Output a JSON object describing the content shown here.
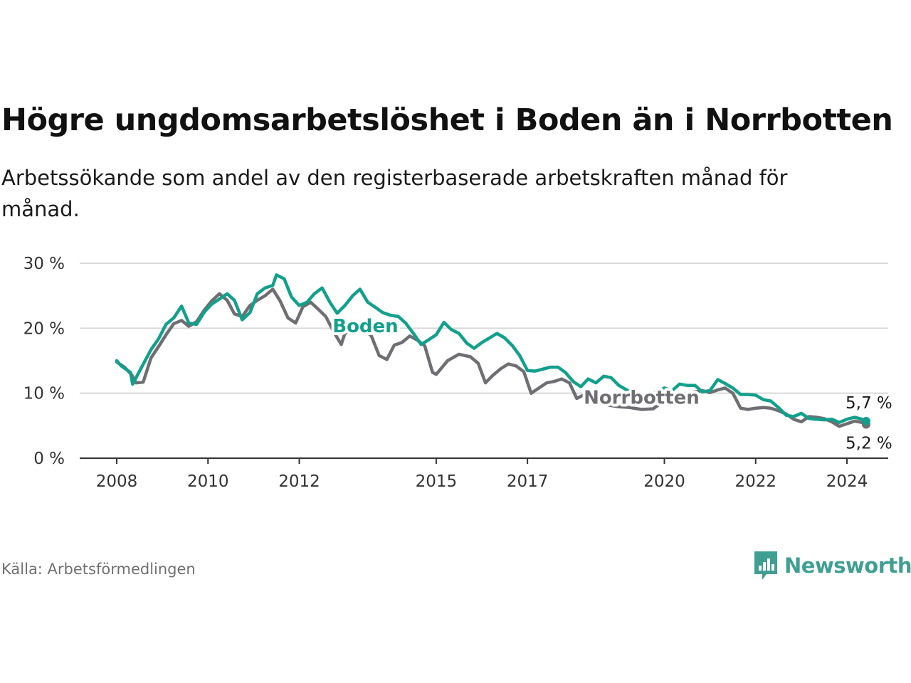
{
  "title": "Högre ungdomsarbetslöshet i Boden än i Norrbotten",
  "subtitle": "Arbetssökande som andel av den registerbaserade arbetskraften månad för månad.",
  "source": "Källa: Arbetsförmedlingen",
  "brand": "Newsworthy",
  "colors": {
    "boden": "#12a08c",
    "norrbotten": "#6f6e72",
    "brand": "#3f9f93",
    "grid": "#d9d9d9",
    "axis": "#333333"
  },
  "chart_data": {
    "type": "line",
    "title": "Högre ungdomsarbetslöshet i Boden än i Norrbotten",
    "xlabel": "",
    "ylabel": "",
    "x_range": [
      2008,
      2025
    ],
    "ylim": [
      0,
      30
    ],
    "x_ticks": [
      2008,
      2010,
      2012,
      2015,
      2017,
      2020,
      2022,
      2024
    ],
    "x_tick_labels": [
      "2008",
      "2010",
      "2012",
      "2015",
      "2017",
      "2020",
      "2022",
      "2024"
    ],
    "y_ticks": [
      0,
      10,
      20,
      30
    ],
    "y_tick_labels": [
      "0 %",
      "10 %",
      "20 %",
      "30 %"
    ],
    "grid": true,
    "series": [
      {
        "name": "Norrbotten",
        "label": "Norrbotten",
        "color": "#6f6e72",
        "end_label": "5,2 %",
        "points": [
          [
            2008.0,
            14.8
          ],
          [
            2008.17,
            14.0
          ],
          [
            2008.33,
            12.8
          ],
          [
            2008.42,
            11.6
          ],
          [
            2008.58,
            11.7
          ],
          [
            2008.75,
            15.4
          ],
          [
            2008.92,
            17.2
          ],
          [
            2009.08,
            19.0
          ],
          [
            2009.25,
            20.7
          ],
          [
            2009.42,
            21.2
          ],
          [
            2009.58,
            20.3
          ],
          [
            2009.75,
            21.0
          ],
          [
            2009.92,
            22.8
          ],
          [
            2010.08,
            24.2
          ],
          [
            2010.25,
            25.3
          ],
          [
            2010.42,
            24.3
          ],
          [
            2010.58,
            22.2
          ],
          [
            2010.75,
            21.8
          ],
          [
            2010.92,
            23.5
          ],
          [
            2011.08,
            24.3
          ],
          [
            2011.25,
            25.0
          ],
          [
            2011.42,
            26.0
          ],
          [
            2011.58,
            24.2
          ],
          [
            2011.75,
            21.6
          ],
          [
            2011.92,
            20.8
          ],
          [
            2012.08,
            23.3
          ],
          [
            2012.25,
            24.0
          ],
          [
            2012.42,
            22.9
          ],
          [
            2012.58,
            21.8
          ],
          [
            2012.75,
            19.5
          ],
          [
            2012.92,
            17.5
          ],
          [
            2013.0,
            19.2
          ],
          [
            2013.25,
            20.3
          ],
          [
            2013.42,
            19.9
          ],
          [
            2013.58,
            18.8
          ],
          [
            2013.75,
            15.8
          ],
          [
            2013.92,
            15.2
          ],
          [
            2014.08,
            17.4
          ],
          [
            2014.25,
            17.8
          ],
          [
            2014.42,
            18.8
          ],
          [
            2014.58,
            18.2
          ],
          [
            2014.75,
            17.3
          ],
          [
            2014.92,
            13.2
          ],
          [
            2015.0,
            12.9
          ],
          [
            2015.25,
            15.0
          ],
          [
            2015.5,
            16.0
          ],
          [
            2015.75,
            15.6
          ],
          [
            2015.92,
            14.6
          ],
          [
            2016.08,
            11.6
          ],
          [
            2016.25,
            12.8
          ],
          [
            2016.42,
            13.8
          ],
          [
            2016.58,
            14.5
          ],
          [
            2016.75,
            14.2
          ],
          [
            2016.92,
            13.3
          ],
          [
            2017.08,
            10.0
          ],
          [
            2017.25,
            10.8
          ],
          [
            2017.42,
            11.6
          ],
          [
            2017.58,
            11.8
          ],
          [
            2017.75,
            12.2
          ],
          [
            2017.92,
            11.6
          ],
          [
            2018.08,
            9.2
          ],
          [
            2018.25,
            9.8
          ],
          [
            2018.5,
            8.8
          ],
          [
            2018.75,
            8.2
          ],
          [
            2019.0,
            7.9
          ],
          [
            2019.25,
            7.8
          ],
          [
            2019.5,
            7.5
          ],
          [
            2019.75,
            7.6
          ],
          [
            2020.0,
            8.8
          ],
          [
            2020.17,
            9.5
          ],
          [
            2020.33,
            10.1
          ],
          [
            2020.5,
            9.9
          ],
          [
            2020.67,
            10.2
          ],
          [
            2020.83,
            10.4
          ],
          [
            2021.0,
            10.1
          ],
          [
            2021.17,
            10.5
          ],
          [
            2021.33,
            10.8
          ],
          [
            2021.5,
            10.0
          ],
          [
            2021.67,
            7.7
          ],
          [
            2021.83,
            7.5
          ],
          [
            2022.0,
            7.7
          ],
          [
            2022.17,
            7.8
          ],
          [
            2022.33,
            7.7
          ],
          [
            2022.5,
            7.3
          ],
          [
            2022.67,
            6.8
          ],
          [
            2022.83,
            6.0
          ],
          [
            2023.0,
            5.6
          ],
          [
            2023.17,
            6.4
          ],
          [
            2023.33,
            6.3
          ],
          [
            2023.5,
            6.1
          ],
          [
            2023.67,
            5.6
          ],
          [
            2023.83,
            4.9
          ],
          [
            2024.0,
            5.3
          ],
          [
            2024.17,
            5.7
          ],
          [
            2024.33,
            5.5
          ],
          [
            2024.42,
            5.2
          ]
        ]
      },
      {
        "name": "Boden",
        "label": "Boden",
        "color": "#12a08c",
        "end_label": "5,7 %",
        "points": [
          [
            2008.0,
            15.0
          ],
          [
            2008.1,
            14.2
          ],
          [
            2008.2,
            13.7
          ],
          [
            2008.3,
            13.2
          ],
          [
            2008.35,
            11.4
          ],
          [
            2008.5,
            13.4
          ],
          [
            2008.75,
            16.7
          ],
          [
            2008.92,
            18.4
          ],
          [
            2009.08,
            20.6
          ],
          [
            2009.25,
            21.6
          ],
          [
            2009.42,
            23.4
          ],
          [
            2009.58,
            20.8
          ],
          [
            2009.75,
            20.6
          ],
          [
            2009.92,
            22.5
          ],
          [
            2010.08,
            23.7
          ],
          [
            2010.25,
            24.5
          ],
          [
            2010.42,
            25.3
          ],
          [
            2010.58,
            24.3
          ],
          [
            2010.75,
            21.3
          ],
          [
            2010.92,
            22.4
          ],
          [
            2011.08,
            25.3
          ],
          [
            2011.25,
            26.2
          ],
          [
            2011.42,
            26.6
          ],
          [
            2011.5,
            28.2
          ],
          [
            2011.67,
            27.6
          ],
          [
            2011.83,
            24.8
          ],
          [
            2012.0,
            23.5
          ],
          [
            2012.17,
            24.0
          ],
          [
            2012.33,
            25.3
          ],
          [
            2012.5,
            26.2
          ],
          [
            2012.67,
            24.0
          ],
          [
            2012.83,
            22.3
          ],
          [
            2013.0,
            23.5
          ],
          [
            2013.17,
            25.0
          ],
          [
            2013.33,
            26.0
          ],
          [
            2013.5,
            24.0
          ],
          [
            2013.67,
            23.2
          ],
          [
            2013.83,
            22.4
          ],
          [
            2014.0,
            22.0
          ],
          [
            2014.17,
            21.8
          ],
          [
            2014.33,
            20.8
          ],
          [
            2014.5,
            19.2
          ],
          [
            2014.67,
            17.5
          ],
          [
            2014.83,
            18.2
          ],
          [
            2015.0,
            19.0
          ],
          [
            2015.17,
            20.9
          ],
          [
            2015.33,
            19.8
          ],
          [
            2015.5,
            19.2
          ],
          [
            2015.67,
            17.7
          ],
          [
            2015.83,
            16.9
          ],
          [
            2016.0,
            17.8
          ],
          [
            2016.17,
            18.5
          ],
          [
            2016.33,
            19.2
          ],
          [
            2016.5,
            18.5
          ],
          [
            2016.67,
            17.3
          ],
          [
            2016.83,
            15.8
          ],
          [
            2017.0,
            13.5
          ],
          [
            2017.17,
            13.4
          ],
          [
            2017.33,
            13.7
          ],
          [
            2017.5,
            14.0
          ],
          [
            2017.67,
            14.0
          ],
          [
            2017.83,
            13.2
          ],
          [
            2018.0,
            11.8
          ],
          [
            2018.17,
            11.0
          ],
          [
            2018.33,
            12.2
          ],
          [
            2018.5,
            11.6
          ],
          [
            2018.67,
            12.6
          ],
          [
            2018.83,
            12.4
          ],
          [
            2019.0,
            11.2
          ],
          [
            2019.25,
            10.2
          ],
          [
            2019.5,
            9.6
          ],
          [
            2019.75,
            9.9
          ],
          [
            2020.0,
            10.8
          ],
          [
            2020.17,
            10.4
          ],
          [
            2020.33,
            11.4
          ],
          [
            2020.5,
            11.2
          ],
          [
            2020.67,
            11.2
          ],
          [
            2020.83,
            10.2
          ],
          [
            2021.0,
            10.4
          ],
          [
            2021.17,
            12.1
          ],
          [
            2021.33,
            11.5
          ],
          [
            2021.5,
            10.8
          ],
          [
            2021.67,
            9.8
          ],
          [
            2021.83,
            9.8
          ],
          [
            2022.0,
            9.7
          ],
          [
            2022.17,
            9.0
          ],
          [
            2022.33,
            8.8
          ],
          [
            2022.5,
            7.8
          ],
          [
            2022.67,
            6.6
          ],
          [
            2022.83,
            6.4
          ],
          [
            2023.0,
            6.9
          ],
          [
            2023.17,
            6.1
          ],
          [
            2023.33,
            6.0
          ],
          [
            2023.5,
            5.9
          ],
          [
            2023.67,
            6.0
          ],
          [
            2023.83,
            5.5
          ],
          [
            2024.0,
            6.0
          ],
          [
            2024.17,
            6.3
          ],
          [
            2024.33,
            6.0
          ],
          [
            2024.42,
            5.7
          ]
        ]
      }
    ]
  }
}
